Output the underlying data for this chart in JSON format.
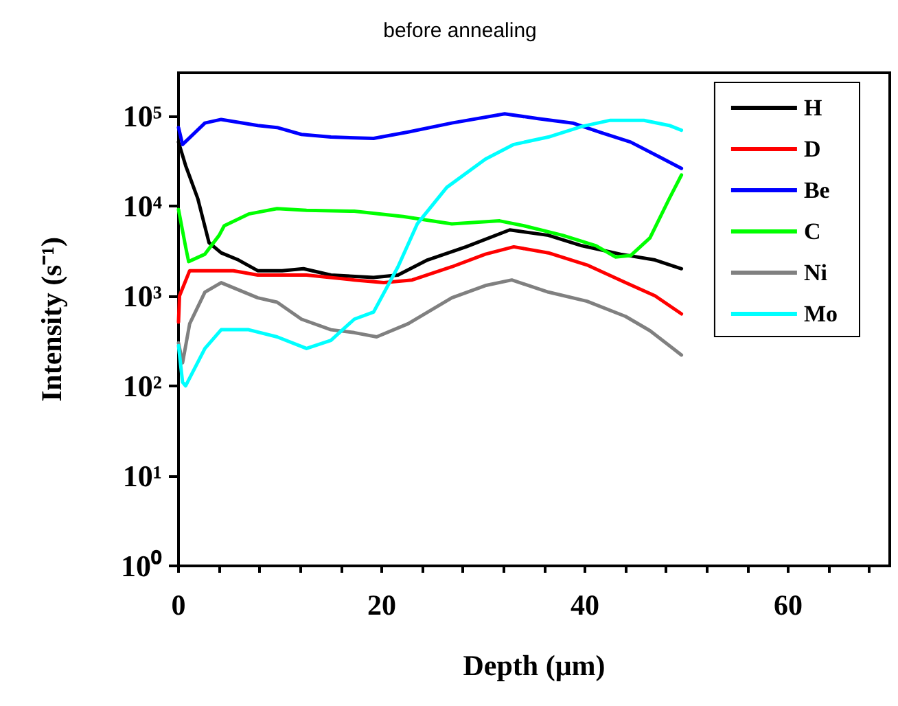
{
  "chart_data": {
    "type": "line",
    "title": "before annealing",
    "xlabel": "Depth (μm)",
    "ylabel": "Intensity (s⁻¹)",
    "log": "y",
    "grid": false,
    "legend": "top right",
    "marker": "none",
    "line_style": "solid",
    "xlim": [
      0,
      70
    ],
    "xticks": [
      0,
      {
        "value": 4,
        "label": null
      },
      {
        "value": 8,
        "label": null
      },
      {
        "value": 12,
        "label": null
      },
      {
        "value": 16,
        "label": null
      },
      20,
      {
        "value": 24,
        "label": null
      },
      {
        "value": 28,
        "label": null
      },
      {
        "value": 32,
        "label": null
      },
      {
        "value": 36,
        "label": null
      },
      40,
      {
        "value": 44,
        "label": null
      },
      {
        "value": 48,
        "label": null
      },
      {
        "value": 52,
        "label": null
      },
      {
        "value": 56,
        "label": null
      },
      60,
      {
        "value": 64,
        "label": null
      },
      {
        "value": 68,
        "label": null
      }
    ],
    "ylim": [
      1,
      300000
    ],
    "yticks": [
      {
        "value": 1,
        "label": "10⁰"
      },
      {
        "value": 10,
        "label": "10¹"
      },
      {
        "value": 100,
        "label": "10²"
      },
      {
        "value": 1000,
        "label": "10³"
      },
      {
        "value": 10000,
        "label": "10⁴"
      },
      {
        "value": 100000,
        "label": "10⁵"
      }
    ],
    "series": [
      {
        "name": "H",
        "color": "#000000",
        "x": [
          0,
          0.7,
          1.9,
          3.0,
          4.2,
          5.9,
          7.8,
          10.2,
          12.3,
          15,
          19.2,
          21.6,
          24.5,
          28.3,
          32.6,
          36.4,
          39.7,
          43.5,
          46.9,
          49.5
        ],
        "values": [
          51000,
          28000,
          12000,
          3900,
          3000,
          2500,
          1900,
          1900,
          2000,
          1700,
          1600,
          1700,
          2500,
          3500,
          5400,
          4700,
          3600,
          2900,
          2500,
          2000
        ]
      },
      {
        "name": "D",
        "color": "#ff0000",
        "x": [
          0,
          0.1,
          1.1,
          5.4,
          7.8,
          12.6,
          17.3,
          20.2,
          23,
          26.9,
          30.2,
          33,
          36.4,
          40.2,
          44,
          46.9,
          49.5
        ],
        "values": [
          510,
          1000,
          1900,
          1900,
          1700,
          1700,
          1500,
          1400,
          1500,
          2100,
          2900,
          3500,
          3000,
          2200,
          1400,
          1000,
          630
        ]
      },
      {
        "name": "Be",
        "color": "#0000ff",
        "x": [
          0,
          0.4,
          2.6,
          4.2,
          7.8,
          9.7,
          12.1,
          15,
          19.2,
          22.6,
          26.9,
          32.1,
          35.4,
          38.8,
          41.6,
          44.5,
          47.3,
          49.5
        ],
        "values": [
          74000,
          48000,
          83000,
          91000,
          78000,
          74000,
          62000,
          58000,
          56000,
          66000,
          83000,
          105000,
          93000,
          83000,
          65000,
          51000,
          35000,
          26000
        ]
      },
      {
        "name": "C",
        "color": "#00ff00",
        "x": [
          0,
          0.7,
          1,
          2.6,
          4,
          4.5,
          6.9,
          9.7,
          12.6,
          17.3,
          22.1,
          26.9,
          31.6,
          34,
          37.8,
          41.1,
          43,
          44.5,
          46.4,
          48.3,
          49.5
        ],
        "values": [
          9100,
          3500,
          2400,
          2900,
          4700,
          6000,
          8100,
          9300,
          8900,
          8700,
          7600,
          6300,
          6800,
          6000,
          4700,
          3600,
          2700,
          2800,
          4400,
          12000,
          22000
        ]
      },
      {
        "name": "Ni",
        "color": "#808080",
        "x": [
          0,
          0.4,
          1.1,
          2.6,
          4.2,
          7.8,
          9.7,
          12.1,
          15,
          17.3,
          19.5,
          22.6,
          26.9,
          30.2,
          32.8,
          36.4,
          40.2,
          44,
          46.4,
          49.5
        ],
        "values": [
          300,
          180,
          490,
          1100,
          1400,
          950,
          850,
          550,
          420,
          390,
          350,
          490,
          950,
          1300,
          1500,
          1100,
          870,
          590,
          410,
          220
        ]
      },
      {
        "name": "Mo",
        "color": "#00ffff",
        "x": [
          0,
          0.4,
          0.7,
          2.6,
          4.2,
          6.9,
          9.7,
          12.6,
          15,
          17.3,
          19.2,
          21.6,
          23.5,
          26.4,
          30.2,
          33,
          36.4,
          39.7,
          42.5,
          45.8,
          48.3,
          49.5
        ],
        "values": [
          280,
          110,
          100,
          260,
          420,
          420,
          350,
          260,
          320,
          550,
          660,
          2100,
          6300,
          16000,
          33000,
          48000,
          58000,
          76000,
          89000,
          89000,
          78000,
          69000
        ]
      }
    ]
  }
}
